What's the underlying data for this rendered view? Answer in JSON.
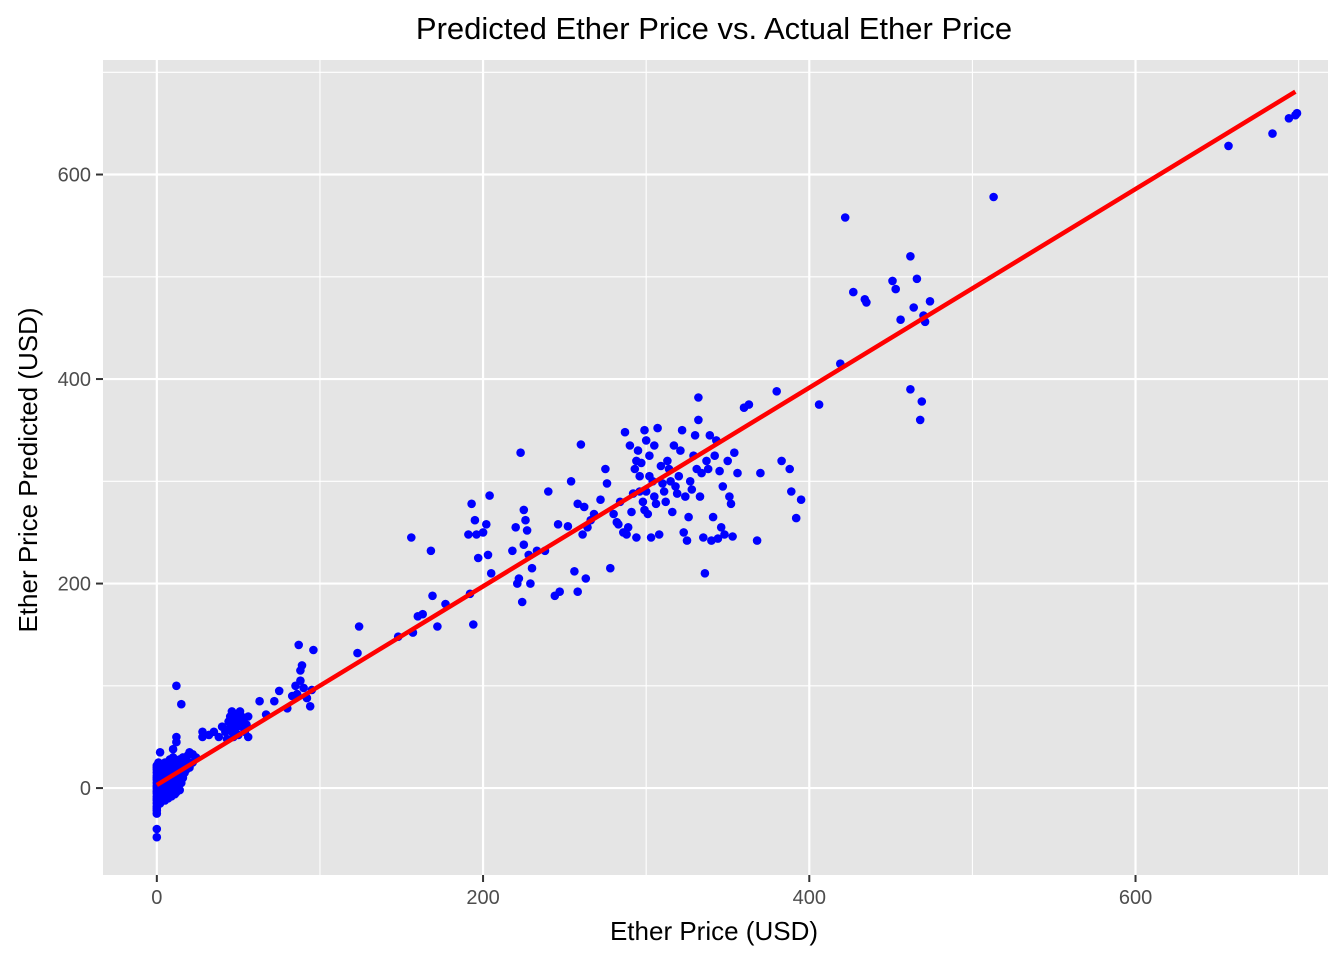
{
  "chart_data": {
    "type": "scatter",
    "title": "Predicted Ether Price vs. Actual Ether Price",
    "xlabel": "Ether Price (USD)",
    "ylabel": "Ether Price Predicted (USD)",
    "xlim": [
      -33,
      718
    ],
    "ylim": [
      -85,
      712
    ],
    "xticks": [
      0,
      200,
      400,
      600
    ],
    "yticks": [
      0,
      200,
      400,
      600
    ],
    "xtick_labels": [
      "0",
      "200",
      "400",
      "600"
    ],
    "ytick_labels": [
      "0",
      "200",
      "400",
      "600"
    ],
    "grid": true,
    "legend": "none",
    "point_color": "#0000ff",
    "line_color": "#ff0000",
    "panel_background": "#e5e5e5",
    "grid_color": "#ffffff",
    "fit_line": {
      "x": [
        0,
        698
      ],
      "y": [
        3,
        681
      ]
    },
    "points": [
      [
        0,
        -48
      ],
      [
        0,
        -40
      ],
      [
        0,
        -22
      ],
      [
        0,
        -18
      ],
      [
        0,
        -15
      ],
      [
        0,
        -12
      ],
      [
        0,
        -10
      ],
      [
        0,
        -8
      ],
      [
        0,
        -5
      ],
      [
        0,
        -3
      ],
      [
        0,
        0
      ],
      [
        0,
        2
      ],
      [
        0,
        5
      ],
      [
        0,
        8
      ],
      [
        0,
        10
      ],
      [
        0,
        12
      ],
      [
        0,
        15
      ],
      [
        0,
        18
      ],
      [
        0,
        20
      ],
      [
        0,
        22
      ],
      [
        0,
        -20
      ],
      [
        0,
        -25
      ],
      [
        1,
        -10
      ],
      [
        1,
        -5
      ],
      [
        1,
        0
      ],
      [
        1,
        4
      ],
      [
        1,
        8
      ],
      [
        1,
        12
      ],
      [
        1,
        18
      ],
      [
        1,
        25
      ],
      [
        2,
        -15
      ],
      [
        2,
        -8
      ],
      [
        2,
        -2
      ],
      [
        2,
        3
      ],
      [
        2,
        10
      ],
      [
        2,
        16
      ],
      [
        2,
        35
      ],
      [
        3,
        -5
      ],
      [
        3,
        5
      ],
      [
        3,
        15
      ],
      [
        4,
        -8
      ],
      [
        4,
        0
      ],
      [
        4,
        10
      ],
      [
        4,
        20
      ],
      [
        5,
        -12
      ],
      [
        5,
        -2
      ],
      [
        5,
        8
      ],
      [
        5,
        18
      ],
      [
        5,
        25
      ],
      [
        6,
        -6
      ],
      [
        6,
        4
      ],
      [
        6,
        14
      ],
      [
        7,
        -10
      ],
      [
        7,
        0
      ],
      [
        7,
        12
      ],
      [
        7,
        22
      ],
      [
        8,
        -4
      ],
      [
        8,
        6
      ],
      [
        8,
        16
      ],
      [
        8,
        28
      ],
      [
        9,
        -8
      ],
      [
        9,
        2
      ],
      [
        9,
        12
      ],
      [
        9,
        20
      ],
      [
        10,
        -2
      ],
      [
        10,
        8
      ],
      [
        10,
        18
      ],
      [
        10,
        30
      ],
      [
        10,
        38
      ],
      [
        11,
        -6
      ],
      [
        11,
        4
      ],
      [
        11,
        14
      ],
      [
        11,
        25
      ],
      [
        12,
        -4
      ],
      [
        12,
        6
      ],
      [
        12,
        16
      ],
      [
        12,
        50
      ],
      [
        12,
        45
      ],
      [
        12,
        100
      ],
      [
        13,
        2
      ],
      [
        13,
        12
      ],
      [
        13,
        22
      ],
      [
        14,
        -2
      ],
      [
        14,
        8
      ],
      [
        14,
        18
      ],
      [
        14,
        28
      ],
      [
        15,
        5
      ],
      [
        15,
        15
      ],
      [
        15,
        25
      ],
      [
        15,
        82
      ],
      [
        16,
        10
      ],
      [
        16,
        20
      ],
      [
        16,
        30
      ],
      [
        17,
        15
      ],
      [
        17,
        25
      ],
      [
        18,
        18
      ],
      [
        18,
        28
      ],
      [
        19,
        22
      ],
      [
        19,
        32
      ],
      [
        20,
        20
      ],
      [
        20,
        35
      ],
      [
        22,
        25
      ],
      [
        22,
        33
      ],
      [
        24,
        30
      ],
      [
        28,
        50
      ],
      [
        28,
        55
      ],
      [
        32,
        52
      ],
      [
        35,
        55
      ],
      [
        38,
        50
      ],
      [
        40,
        60
      ],
      [
        42,
        55
      ],
      [
        43,
        48
      ],
      [
        44,
        65
      ],
      [
        45,
        70
      ],
      [
        45,
        60
      ],
      [
        46,
        55
      ],
      [
        46,
        75
      ],
      [
        47,
        65
      ],
      [
        47,
        50
      ],
      [
        48,
        72
      ],
      [
        48,
        58
      ],
      [
        49,
        62
      ],
      [
        50,
        68
      ],
      [
        50,
        52
      ],
      [
        51,
        75
      ],
      [
        52,
        60
      ],
      [
        52,
        70
      ],
      [
        53,
        66
      ],
      [
        54,
        55
      ],
      [
        55,
        62
      ],
      [
        56,
        70
      ],
      [
        56,
        50
      ],
      [
        63,
        85
      ],
      [
        67,
        72
      ],
      [
        72,
        85
      ],
      [
        75,
        95
      ],
      [
        80,
        78
      ],
      [
        83,
        90
      ],
      [
        85,
        100
      ],
      [
        86,
        92
      ],
      [
        87,
        140
      ],
      [
        88,
        115
      ],
      [
        88,
        105
      ],
      [
        89,
        120
      ],
      [
        90,
        98
      ],
      [
        92,
        88
      ],
      [
        94,
        80
      ],
      [
        95,
        96
      ],
      [
        96,
        135
      ],
      [
        123,
        132
      ],
      [
        124,
        158
      ],
      [
        148,
        148
      ],
      [
        156,
        245
      ],
      [
        157,
        152
      ],
      [
        160,
        168
      ],
      [
        163,
        170
      ],
      [
        168,
        232
      ],
      [
        169,
        188
      ],
      [
        172,
        158
      ],
      [
        177,
        180
      ],
      [
        192,
        190
      ],
      [
        191,
        248
      ],
      [
        193,
        278
      ],
      [
        194,
        160
      ],
      [
        195,
        262
      ],
      [
        196,
        248
      ],
      [
        197,
        225
      ],
      [
        200,
        250
      ],
      [
        202,
        258
      ],
      [
        203,
        228
      ],
      [
        204,
        286
      ],
      [
        205,
        210
      ],
      [
        218,
        232
      ],
      [
        220,
        255
      ],
      [
        221,
        200
      ],
      [
        222,
        205
      ],
      [
        223,
        328
      ],
      [
        224,
        182
      ],
      [
        225,
        272
      ],
      [
        225,
        238
      ],
      [
        226,
        262
      ],
      [
        227,
        252
      ],
      [
        228,
        228
      ],
      [
        229,
        200
      ],
      [
        230,
        215
      ],
      [
        233,
        232
      ],
      [
        238,
        232
      ],
      [
        240,
        290
      ],
      [
        244,
        188
      ],
      [
        246,
        258
      ],
      [
        247,
        192
      ],
      [
        252,
        256
      ],
      [
        254,
        300
      ],
      [
        256,
        212
      ],
      [
        258,
        278
      ],
      [
        258,
        192
      ],
      [
        260,
        336
      ],
      [
        261,
        248
      ],
      [
        262,
        275
      ],
      [
        263,
        205
      ],
      [
        264,
        255
      ],
      [
        266,
        262
      ],
      [
        268,
        268
      ],
      [
        272,
        282
      ],
      [
        275,
        312
      ],
      [
        276,
        298
      ],
      [
        278,
        215
      ],
      [
        280,
        268
      ],
      [
        282,
        260
      ],
      [
        283,
        258
      ],
      [
        284,
        280
      ],
      [
        286,
        250
      ],
      [
        287,
        348
      ],
      [
        288,
        248
      ],
      [
        289,
        255
      ],
      [
        290,
        335
      ],
      [
        291,
        270
      ],
      [
        292,
        288
      ],
      [
        293,
        312
      ],
      [
        294,
        320
      ],
      [
        294,
        245
      ],
      [
        295,
        330
      ],
      [
        296,
        290
      ],
      [
        296,
        305
      ],
      [
        297,
        318
      ],
      [
        298,
        280
      ],
      [
        299,
        350
      ],
      [
        299,
        272
      ],
      [
        300,
        340
      ],
      [
        300,
        290
      ],
      [
        301,
        268
      ],
      [
        302,
        305
      ],
      [
        302,
        325
      ],
      [
        303,
        245
      ],
      [
        304,
        300
      ],
      [
        305,
        335
      ],
      [
        305,
        285
      ],
      [
        306,
        278
      ],
      [
        307,
        352
      ],
      [
        308,
        248
      ],
      [
        309,
        315
      ],
      [
        310,
        298
      ],
      [
        311,
        290
      ],
      [
        312,
        280
      ],
      [
        313,
        320
      ],
      [
        314,
        312
      ],
      [
        315,
        300
      ],
      [
        316,
        270
      ],
      [
        317,
        335
      ],
      [
        318,
        295
      ],
      [
        319,
        288
      ],
      [
        320,
        305
      ],
      [
        321,
        330
      ],
      [
        322,
        350
      ],
      [
        323,
        250
      ],
      [
        324,
        285
      ],
      [
        325,
        242
      ],
      [
        326,
        265
      ],
      [
        327,
        300
      ],
      [
        328,
        292
      ],
      [
        329,
        325
      ],
      [
        330,
        345
      ],
      [
        331,
        312
      ],
      [
        332,
        360
      ],
      [
        332,
        382
      ],
      [
        333,
        285
      ],
      [
        334,
        308
      ],
      [
        335,
        245
      ],
      [
        336,
        210
      ],
      [
        337,
        320
      ],
      [
        338,
        312
      ],
      [
        339,
        345
      ],
      [
        340,
        242
      ],
      [
        341,
        265
      ],
      [
        342,
        325
      ],
      [
        343,
        340
      ],
      [
        344,
        244
      ],
      [
        345,
        310
      ],
      [
        346,
        255
      ],
      [
        347,
        295
      ],
      [
        348,
        248
      ],
      [
        350,
        320
      ],
      [
        351,
        285
      ],
      [
        352,
        278
      ],
      [
        353,
        246
      ],
      [
        354,
        328
      ],
      [
        356,
        308
      ],
      [
        360,
        372
      ],
      [
        363,
        375
      ],
      [
        368,
        242
      ],
      [
        370,
        308
      ],
      [
        380,
        388
      ],
      [
        383,
        320
      ],
      [
        388,
        312
      ],
      [
        389,
        290
      ],
      [
        392,
        264
      ],
      [
        395,
        282
      ],
      [
        406,
        375
      ],
      [
        419,
        415
      ],
      [
        422,
        558
      ],
      [
        427,
        485
      ],
      [
        434,
        478
      ],
      [
        435,
        475
      ],
      [
        451,
        496
      ],
      [
        453,
        488
      ],
      [
        456,
        458
      ],
      [
        462,
        520
      ],
      [
        462,
        390
      ],
      [
        464,
        470
      ],
      [
        466,
        498
      ],
      [
        468,
        360
      ],
      [
        469,
        378
      ],
      [
        470,
        462
      ],
      [
        471,
        456
      ],
      [
        474,
        476
      ],
      [
        513,
        578
      ],
      [
        657,
        628
      ],
      [
        684,
        640
      ],
      [
        694,
        655
      ],
      [
        698,
        658
      ],
      [
        699,
        660
      ]
    ]
  }
}
